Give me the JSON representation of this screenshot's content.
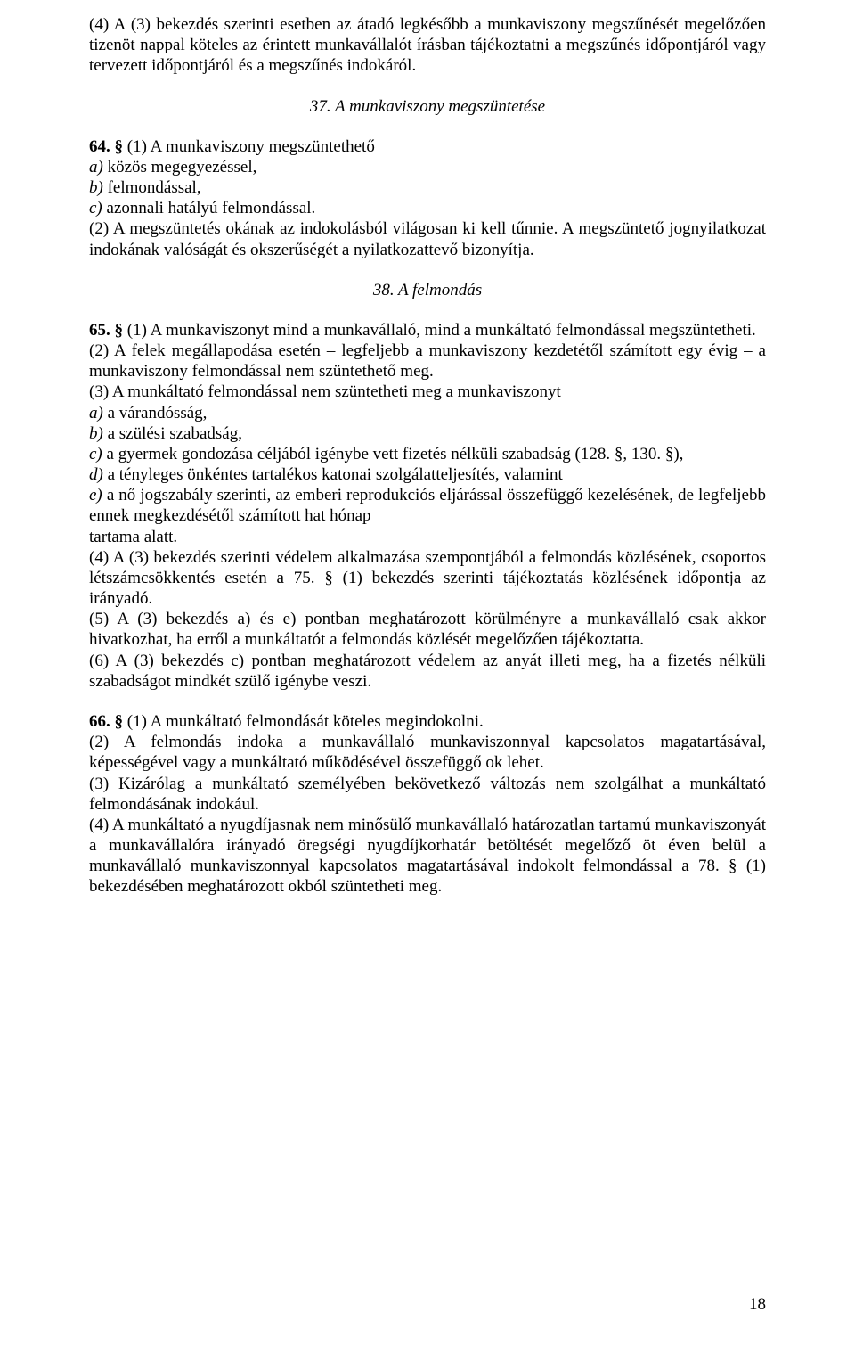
{
  "p1": "(4) A (3) bekezdés szerinti esetben az átadó legkésőbb a munkaviszony megszűnését megelőzően tizenöt nappal köteles az érintett munkavállalót írásban tájékoztatni a megszűnés időpontjáról vagy tervezett időpontjáról és a megszűnés indokáról.",
  "h1": "37. A munkaviszony megszüntetése",
  "p2_lead": "64. § ",
  "p2_rest": "(1) A munkaviszony megszüntethető",
  "p2_a_i": "a) ",
  "p2_a": "közös megegyezéssel,",
  "p2_b_i": "b) ",
  "p2_b": "felmondással,",
  "p2_c_i": "c) ",
  "p2_c": "azonnali hatályú felmondással.",
  "p3": "(2) A megszüntetés okának az indokolásból világosan ki kell tűnnie. A megszüntető jognyilatkozat indokának valóságát és okszerűségét a nyilatkozattevő bizonyítja.",
  "h2": "38. A felmondás",
  "p4_lead": "65. § ",
  "p4_rest": "(1) A munkaviszonyt mind a munkavállaló, mind a munkáltató felmondással megszüntetheti.",
  "p5": "(2) A felek megállapodása esetén – legfeljebb a munkaviszony kezdetétől számított egy évig – a munkaviszony felmondással nem szüntethető meg.",
  "p6": "(3) A munkáltató felmondással nem szüntetheti meg a munkaviszonyt",
  "p6_a_i": "a) ",
  "p6_a": "a várandósság,",
  "p6_b_i": "b) ",
  "p6_b": "a szülési szabadság,",
  "p6_c_i": "c) ",
  "p6_c": "a gyermek gondozása céljából igénybe vett fizetés nélküli szabadság (128. §, 130. §),",
  "p6_d_i": "d) ",
  "p6_d": "a tényleges önkéntes tartalékos katonai szolgálatteljesítés, valamint",
  "p6_e_i": "e) ",
  "p6_e": "a nő jogszabály szerinti, az emberi reprodukciós eljárással összefüggő kezelésének, de legfeljebb ennek megkezdésétől számított hat hónap",
  "p6_tail": "tartama alatt.",
  "p7": "(4) A (3) bekezdés szerinti védelem alkalmazása szempontjából a felmondás közlésének, csoportos létszámcsökkentés esetén a 75. § (1) bekezdés szerinti tájékoztatás közlésének időpontja az irányadó.",
  "p8": "(5) A (3) bekezdés a) és e) pontban meghatározott körülményre a munkavállaló csak akkor hivatkozhat, ha erről a munkáltatót a felmondás közlését megelőzően tájékoztatta.",
  "p9": "(6) A (3) bekezdés c) pontban meghatározott védelem az anyát illeti meg, ha a fizetés nélküli szabadságot mindkét szülő igénybe veszi.",
  "p10_lead": "66. § ",
  "p10_rest": "(1) A munkáltató felmondását köteles megindokolni.",
  "p11": "(2) A felmondás indoka a munkavállaló munkaviszonnyal kapcsolatos magatartásával, képességével vagy a munkáltató működésével összefüggő ok lehet.",
  "p12": "(3) Kizárólag a munkáltató személyében bekövetkező változás nem szolgálhat a munkáltató felmondásának indokául.",
  "p13": "(4) A munkáltató a nyugdíjasnak nem minősülő munkavállaló határozatlan tartamú munkaviszonyát a munkavállalóra irányadó öregségi nyugdíjkorhatár betöltését megelőző öt éven belül a munkavállaló munkaviszonnyal kapcsolatos magatartásával indokolt felmondással a 78. § (1) bekezdésében meghatározott okból szüntetheti meg.",
  "pagenum": "18"
}
